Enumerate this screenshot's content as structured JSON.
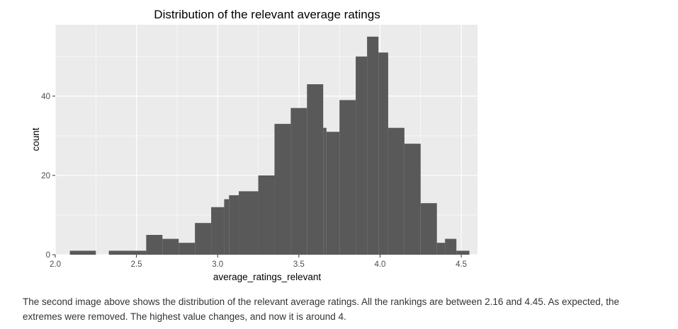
{
  "chart_data": {
    "type": "bar",
    "title": "Distribution of the relevant average ratings",
    "xlabel": "average_ratings_relevant",
    "ylabel": "count",
    "xlim": [
      2.0,
      4.6
    ],
    "ylim": [
      0,
      58
    ],
    "x_ticks": [
      "2.0",
      "2.5",
      "3.0",
      "3.5",
      "4.0",
      "4.5"
    ],
    "x_tick_values": [
      2.0,
      2.5,
      3.0,
      3.5,
      4.0,
      4.5
    ],
    "y_ticks": [
      "0",
      "20",
      "40"
    ],
    "y_tick_values": [
      0,
      20,
      40
    ],
    "grid": true,
    "bins": [
      {
        "x0": 2.09,
        "x1": 2.25,
        "count": 1
      },
      {
        "x0": 2.33,
        "x1": 2.56,
        "count": 1
      },
      {
        "x0": 2.56,
        "x1": 2.66,
        "count": 5
      },
      {
        "x0": 2.66,
        "x1": 2.76,
        "count": 4
      },
      {
        "x0": 2.76,
        "x1": 2.86,
        "count": 3
      },
      {
        "x0": 2.86,
        "x1": 2.96,
        "count": 8
      },
      {
        "x0": 2.96,
        "x1": 3.04,
        "count": 12
      },
      {
        "x0": 3.04,
        "x1": 3.07,
        "count": 14
      },
      {
        "x0": 3.07,
        "x1": 3.13,
        "count": 15
      },
      {
        "x0": 3.13,
        "x1": 3.25,
        "count": 16
      },
      {
        "x0": 3.25,
        "x1": 3.35,
        "count": 20
      },
      {
        "x0": 3.35,
        "x1": 3.45,
        "count": 33
      },
      {
        "x0": 3.45,
        "x1": 3.55,
        "count": 37
      },
      {
        "x0": 3.55,
        "x1": 3.65,
        "count": 43
      },
      {
        "x0": 3.65,
        "x1": 3.67,
        "count": 32
      },
      {
        "x0": 3.67,
        "x1": 3.75,
        "count": 31
      },
      {
        "x0": 3.75,
        "x1": 3.85,
        "count": 39
      },
      {
        "x0": 3.85,
        "x1": 3.92,
        "count": 50
      },
      {
        "x0": 3.92,
        "x1": 3.99,
        "count": 55
      },
      {
        "x0": 3.99,
        "x1": 4.05,
        "count": 51
      },
      {
        "x0": 4.05,
        "x1": 4.15,
        "count": 32
      },
      {
        "x0": 4.15,
        "x1": 4.25,
        "count": 28
      },
      {
        "x0": 4.25,
        "x1": 4.35,
        "count": 13
      },
      {
        "x0": 4.35,
        "x1": 4.4,
        "count": 3
      },
      {
        "x0": 4.4,
        "x1": 4.47,
        "count": 4
      },
      {
        "x0": 4.47,
        "x1": 4.55,
        "count": 1
      }
    ],
    "colors": {
      "panel": "#ebebeb",
      "grid": "#ffffff",
      "bar": "#595959",
      "text": "#000000",
      "tick_text": "#4d4d4d"
    }
  },
  "caption": "The second image above shows the distribution of the relevant average ratings. All the rankings are between 2.16 and 4.45. As expected, the extremes were removed. The highest value changes, and now it is around 4."
}
